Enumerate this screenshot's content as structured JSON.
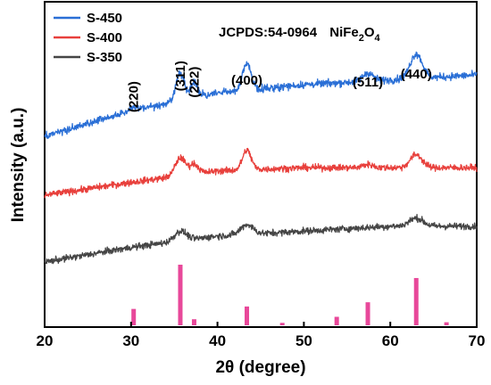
{
  "chart_data": {
    "type": "line",
    "xlabel": "2θ (degree)",
    "ylabel": "Intensity (a.u.)",
    "xlim": [
      20,
      70
    ],
    "xticks": [
      "20",
      "30",
      "40",
      "50",
      "60",
      "70"
    ],
    "y_tick_labels": false,
    "legend_position": "top-left",
    "reference": {
      "card": "JCPDS:54-0964",
      "formula_base": "NiFe",
      "formula_sub1": "2",
      "formula_mid": "O",
      "formula_sub2": "4",
      "color": "#e8489a",
      "peaks": [
        {
          "x": 30.3,
          "rel": 0.27
        },
        {
          "x": 35.7,
          "rel": 1.0
        },
        {
          "x": 37.3,
          "rel": 0.1
        },
        {
          "x": 43.4,
          "rel": 0.31
        },
        {
          "x": 47.5,
          "rel": 0.04
        },
        {
          "x": 53.8,
          "rel": 0.14
        },
        {
          "x": 57.4,
          "rel": 0.38
        },
        {
          "x": 63.0,
          "rel": 0.78
        },
        {
          "x": 66.5,
          "rel": 0.05
        }
      ]
    },
    "series": [
      {
        "name": "S-450",
        "color": "#2a6fd6",
        "baseline": [
          [
            20,
            0.585
          ],
          [
            30,
            0.665
          ],
          [
            40,
            0.72
          ],
          [
            50,
            0.745
          ],
          [
            60,
            0.76
          ],
          [
            70,
            0.775
          ]
        ],
        "noise": 0.022,
        "peaks": [
          [
            30.3,
            0.01,
            0.5
          ],
          [
            35.7,
            0.085,
            0.5
          ],
          [
            37.3,
            0.045,
            0.4
          ],
          [
            43.4,
            0.08,
            0.5
          ],
          [
            57.4,
            0.025,
            0.6
          ],
          [
            63.0,
            0.075,
            0.7
          ]
        ]
      },
      {
        "name": "S-400",
        "color": "#e8403c",
        "baseline": [
          [
            20,
            0.405
          ],
          [
            30,
            0.445
          ],
          [
            40,
            0.48
          ],
          [
            50,
            0.49
          ],
          [
            60,
            0.49
          ],
          [
            70,
            0.49
          ]
        ],
        "noise": 0.02,
        "peaks": [
          [
            35.7,
            0.055,
            0.6
          ],
          [
            37.3,
            0.03,
            0.5
          ],
          [
            43.4,
            0.06,
            0.5
          ],
          [
            57.4,
            0.01,
            0.6
          ],
          [
            63.0,
            0.04,
            0.7
          ]
        ]
      },
      {
        "name": "S-350",
        "color": "#454545",
        "baseline": [
          [
            20,
            0.2
          ],
          [
            30,
            0.245
          ],
          [
            40,
            0.28
          ],
          [
            50,
            0.295
          ],
          [
            60,
            0.31
          ],
          [
            70,
            0.31
          ]
        ],
        "noise": 0.02,
        "peaks": [
          [
            35.7,
            0.03,
            0.7
          ],
          [
            43.4,
            0.03,
            0.7
          ],
          [
            63.0,
            0.025,
            0.8
          ]
        ]
      }
    ],
    "plane_labels": [
      {
        "text": "(220)",
        "x": 30.3
      },
      {
        "text": "(311)",
        "x": 35.7
      },
      {
        "text": "(222)",
        "x": 37.3
      },
      {
        "text": "(400)",
        "x": 43.4
      },
      {
        "text": "(511)",
        "x": 57.4
      },
      {
        "text": "(440)",
        "x": 63.0
      }
    ]
  }
}
